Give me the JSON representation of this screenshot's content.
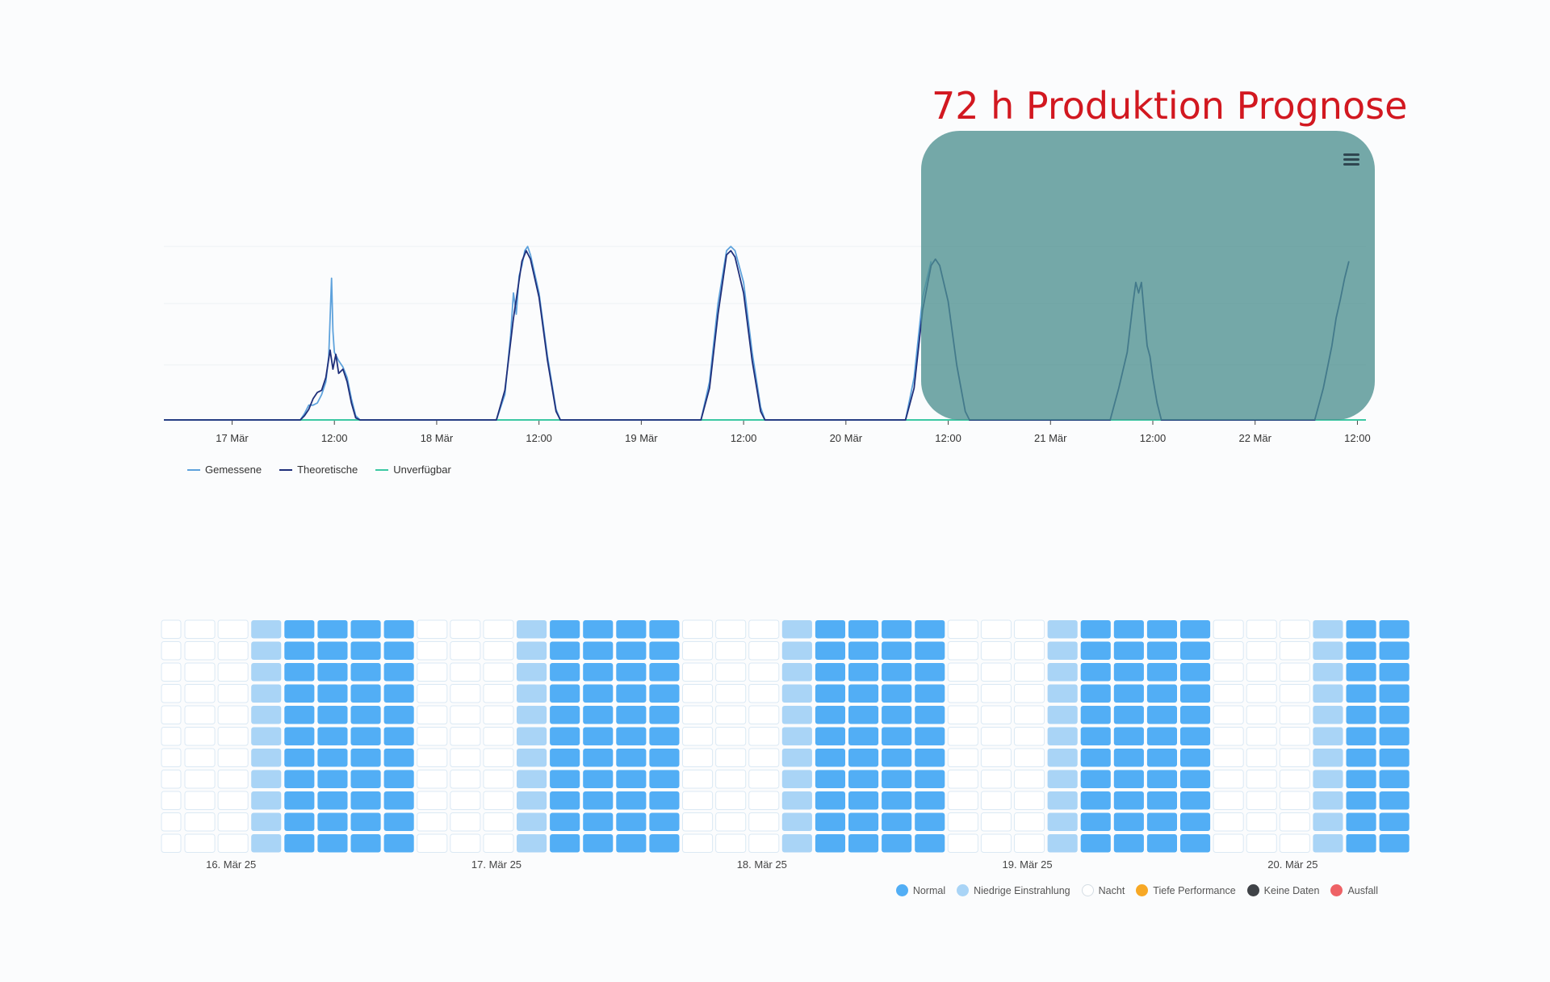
{
  "annotation": {
    "title": "72 h Produktion Prognose"
  },
  "colors": {
    "gemessene": "#5ea2dc",
    "theoretische": "#1f2f7a",
    "unverfuegbar": "#3cc8a3",
    "normal": "#52aef5",
    "niedrige": "#a9d4f6",
    "nacht": "#ffffff",
    "tiefe": "#f7a825",
    "keine": "#3f4247",
    "ausfall": "#ee6266"
  },
  "chart_data": [
    {
      "type": "line",
      "x_range": [
        "2025-03-16T16:00",
        "2025-03-22T13:00"
      ],
      "ylim": [
        0,
        1
      ],
      "x_ticks": [
        "17 Mär",
        "12:00",
        "18 Mär",
        "12:00",
        "19 Mär",
        "12:00",
        "20 Mär",
        "12:00",
        "21 Mär",
        "12:00",
        "22 Mär",
        "12:00"
      ],
      "series": [
        {
          "name": "Gemessene",
          "points": [
            [
              "2025-03-17T08:00",
              0
            ],
            [
              "2025-03-17T08:30",
              0.03
            ],
            [
              "2025-03-17T09:00",
              0.07
            ],
            [
              "2025-03-17T09:30",
              0.07
            ],
            [
              "2025-03-17T10:00",
              0.08
            ],
            [
              "2025-03-17T10:30",
              0.12
            ],
            [
              "2025-03-17T11:00",
              0.18
            ],
            [
              "2025-03-17T11:20",
              0.3
            ],
            [
              "2025-03-17T11:40",
              0.67
            ],
            [
              "2025-03-17T11:50",
              0.42
            ],
            [
              "2025-03-17T12:00",
              0.32
            ],
            [
              "2025-03-17T12:30",
              0.28
            ],
            [
              "2025-03-17T13:00",
              0.25
            ],
            [
              "2025-03-17T13:30",
              0.2
            ],
            [
              "2025-03-17T14:00",
              0.1
            ],
            [
              "2025-03-17T14:30",
              0.02
            ],
            [
              "2025-03-17T15:00",
              0
            ],
            [
              "2025-03-18T07:00",
              0
            ],
            [
              "2025-03-18T08:00",
              0.12
            ],
            [
              "2025-03-18T08:40",
              0.4
            ],
            [
              "2025-03-18T09:00",
              0.6
            ],
            [
              "2025-03-18T09:20",
              0.5
            ],
            [
              "2025-03-18T09:40",
              0.68
            ],
            [
              "2025-03-18T10:00",
              0.73
            ],
            [
              "2025-03-18T10:20",
              0.8
            ],
            [
              "2025-03-18T10:40",
              0.82
            ],
            [
              "2025-03-18T11:00",
              0.78
            ],
            [
              "2025-03-18T12:00",
              0.6
            ],
            [
              "2025-03-18T13:00",
              0.3
            ],
            [
              "2025-03-18T14:00",
              0.05
            ],
            [
              "2025-03-18T14:30",
              0
            ],
            [
              "2025-03-19T07:00",
              0
            ],
            [
              "2025-03-19T08:00",
              0.18
            ],
            [
              "2025-03-19T09:00",
              0.55
            ],
            [
              "2025-03-19T10:00",
              0.8
            ],
            [
              "2025-03-19T10:30",
              0.82
            ],
            [
              "2025-03-19T11:00",
              0.8
            ],
            [
              "2025-03-19T12:00",
              0.65
            ],
            [
              "2025-03-19T13:00",
              0.32
            ],
            [
              "2025-03-19T14:00",
              0.06
            ],
            [
              "2025-03-19T14:30",
              0
            ],
            [
              "2025-03-20T07:00",
              0
            ],
            [
              "2025-03-20T08:00",
              0.2
            ],
            [
              "2025-03-20T09:00",
              0.58
            ],
            [
              "2025-03-20T10:00",
              0.75
            ]
          ]
        },
        {
          "name": "Theoretische",
          "points": [
            [
              "2025-03-17T08:00",
              0
            ],
            [
              "2025-03-17T08:30",
              0.02
            ],
            [
              "2025-03-17T09:00",
              0.05
            ],
            [
              "2025-03-17T09:30",
              0.1
            ],
            [
              "2025-03-17T10:00",
              0.13
            ],
            [
              "2025-03-17T10:30",
              0.14
            ],
            [
              "2025-03-17T11:00",
              0.2
            ],
            [
              "2025-03-17T11:30",
              0.33
            ],
            [
              "2025-03-17T11:50",
              0.24
            ],
            [
              "2025-03-17T12:10",
              0.31
            ],
            [
              "2025-03-17T12:30",
              0.22
            ],
            [
              "2025-03-17T13:00",
              0.24
            ],
            [
              "2025-03-17T13:30",
              0.18
            ],
            [
              "2025-03-17T14:00",
              0.08
            ],
            [
              "2025-03-17T14:30",
              0.01
            ],
            [
              "2025-03-17T15:00",
              0
            ],
            [
              "2025-03-18T07:00",
              0
            ],
            [
              "2025-03-18T08:00",
              0.14
            ],
            [
              "2025-03-18T09:00",
              0.48
            ],
            [
              "2025-03-18T10:00",
              0.75
            ],
            [
              "2025-03-18T10:30",
              0.8
            ],
            [
              "2025-03-18T11:00",
              0.76
            ],
            [
              "2025-03-18T12:00",
              0.58
            ],
            [
              "2025-03-18T13:00",
              0.28
            ],
            [
              "2025-03-18T14:00",
              0.04
            ],
            [
              "2025-03-18T14:30",
              0
            ],
            [
              "2025-03-19T07:00",
              0
            ],
            [
              "2025-03-19T08:00",
              0.15
            ],
            [
              "2025-03-19T09:00",
              0.5
            ],
            [
              "2025-03-19T10:00",
              0.78
            ],
            [
              "2025-03-19T10:30",
              0.8
            ],
            [
              "2025-03-19T11:00",
              0.77
            ],
            [
              "2025-03-19T12:00",
              0.6
            ],
            [
              "2025-03-19T13:00",
              0.28
            ],
            [
              "2025-03-19T14:00",
              0.04
            ],
            [
              "2025-03-19T14:30",
              0
            ],
            [
              "2025-03-20T07:00",
              0
            ],
            [
              "2025-03-20T08:00",
              0.15
            ],
            [
              "2025-03-20T09:00",
              0.52
            ],
            [
              "2025-03-20T10:00",
              0.73
            ],
            [
              "2025-03-20T10:30",
              0.76
            ],
            [
              "2025-03-20T11:00",
              0.73
            ],
            [
              "2025-03-20T12:00",
              0.56
            ],
            [
              "2025-03-20T13:00",
              0.26
            ],
            [
              "2025-03-20T14:00",
              0.04
            ],
            [
              "2025-03-20T14:30",
              0
            ],
            [
              "2025-03-21T07:00",
              0
            ],
            [
              "2025-03-21T08:00",
              0.15
            ],
            [
              "2025-03-21T09:00",
              0.32
            ],
            [
              "2025-03-21T09:40",
              0.55
            ],
            [
              "2025-03-21T10:00",
              0.65
            ],
            [
              "2025-03-21T10:20",
              0.6
            ],
            [
              "2025-03-21T10:40",
              0.65
            ],
            [
              "2025-03-21T11:00",
              0.5
            ],
            [
              "2025-03-21T11:20",
              0.35
            ],
            [
              "2025-03-21T11:40",
              0.3
            ],
            [
              "2025-03-21T12:00",
              0.2
            ],
            [
              "2025-03-21T12:30",
              0.08
            ],
            [
              "2025-03-21T13:00",
              0
            ],
            [
              "2025-03-22T07:00",
              0
            ],
            [
              "2025-03-22T08:00",
              0.15
            ],
            [
              "2025-03-22T09:00",
              0.35
            ],
            [
              "2025-03-22T09:30",
              0.48
            ],
            [
              "2025-03-22T10:00",
              0.57
            ],
            [
              "2025-03-22T10:30",
              0.67
            ],
            [
              "2025-03-22T11:00",
              0.75
            ]
          ]
        },
        {
          "name": "Unverfügbar",
          "points": [
            [
              "2025-03-16T16:00",
              0
            ],
            [
              "2025-03-22T13:00",
              0
            ]
          ]
        }
      ]
    },
    {
      "type": "heatmap",
      "column_states": [
        "nacht",
        "nacht",
        "niedrige",
        "normal",
        "normal",
        "normal",
        "normal",
        "nacht",
        "nacht",
        "nacht",
        "niedrige",
        "normal",
        "normal",
        "normal",
        "normal",
        "nacht",
        "nacht",
        "nacht",
        "niedrige",
        "normal",
        "normal",
        "normal",
        "normal",
        "nacht",
        "nacht",
        "nacht",
        "niedrige",
        "normal",
        "normal",
        "normal",
        "normal",
        "nacht",
        "nacht",
        "nacht",
        "niedrige",
        "normal",
        "normal"
      ],
      "row_count": 11,
      "date_labels": [
        "16. Mär 25",
        "17. Mär 25",
        "18. Mär 25",
        "19. Mär 25",
        "20. Mär 25"
      ],
      "date_label_columns": [
        1,
        9,
        17,
        25,
        33
      ],
      "legend": [
        {
          "key": "normal",
          "label": "Normal"
        },
        {
          "key": "niedrige",
          "label": "Niedrige Einstrahlung"
        },
        {
          "key": "nacht",
          "label": "Nacht"
        },
        {
          "key": "tiefe",
          "label": "Tiefe Performance"
        },
        {
          "key": "keine",
          "label": "Keine Daten"
        },
        {
          "key": "ausfall",
          "label": "Ausfall"
        }
      ]
    }
  ]
}
